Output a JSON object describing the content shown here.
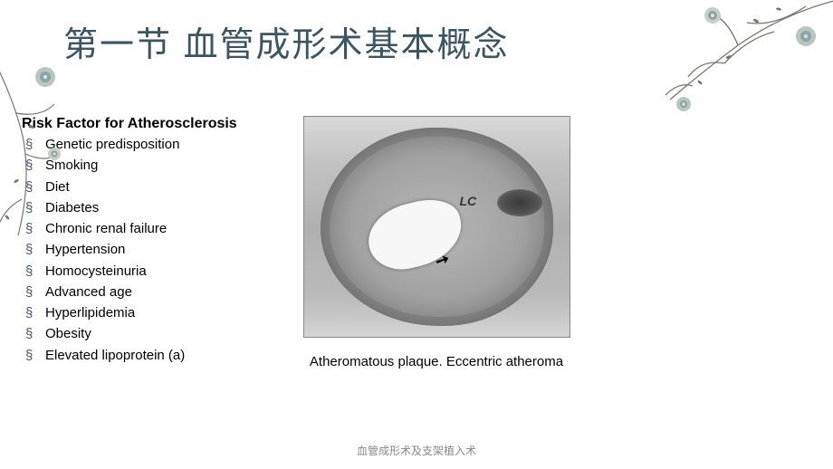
{
  "title": "第一节 血管成形术基本概念",
  "risk": {
    "heading": "Risk Factor for Atherosclerosis",
    "bullet_glyph": "§",
    "items": [
      "Genetic predisposition",
      "Smoking",
      " Diet",
      "Diabetes",
      "Chronic renal failure",
      "Hypertension",
      "Homocysteinuria",
      "Advanced age",
      "Hyperlipidemia",
      "Obesity",
      "Elevated lipoprotein (a)"
    ]
  },
  "figure": {
    "lc_label": "LC",
    "arrow": "➚",
    "caption": "Atheromatous plaque. Eccentric atheroma"
  },
  "footer": "血管成形术及支架植入术",
  "decor": {
    "branch_color": "#777770",
    "flower_colors": [
      "#8aa3a8",
      "#b9c6c0",
      "#c9cfc6"
    ]
  }
}
